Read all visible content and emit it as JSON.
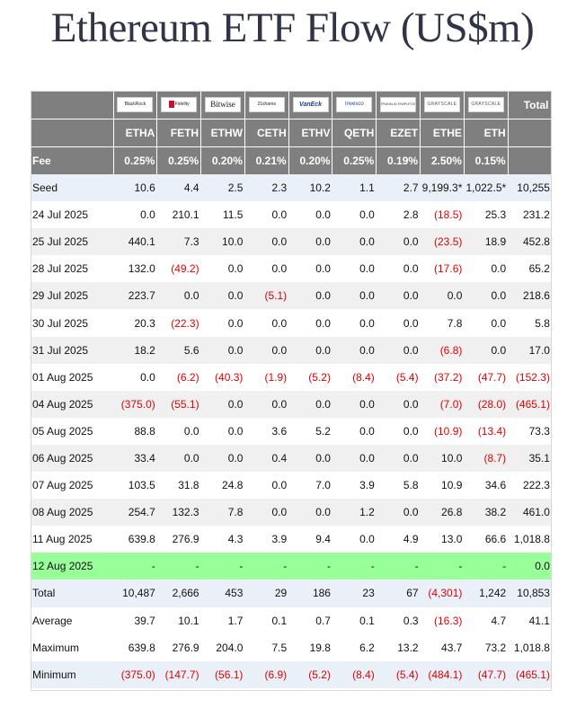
{
  "title": "Ethereum ETF Flow (US$m)",
  "issuers": [
    {
      "name": "BlackRock",
      "logo": "blackrock-logo"
    },
    {
      "name": "Fidelity",
      "logo": "fidelity-logo"
    },
    {
      "name": "Bitwise",
      "logo": "bitwise-logo"
    },
    {
      "name": "21shares",
      "logo": "21shares-logo"
    },
    {
      "name": "VanEck",
      "logo": "vaneck-logo"
    },
    {
      "name": "Invesco",
      "logo": "invesco-logo"
    },
    {
      "name": "FRANKLIN TEMPLETON",
      "logo": "franklin-templeton-logo"
    },
    {
      "name": "GRAYSCALE",
      "logo": "grayscale-logo"
    },
    {
      "name": "GRAYSCALE",
      "logo": "grayscale-logo"
    }
  ],
  "total_header": "Total",
  "tickers": [
    "ETHA",
    "FETH",
    "ETHW",
    "CETH",
    "ETHV",
    "QETH",
    "EZET",
    "ETHE",
    "ETH"
  ],
  "fee": {
    "label": "Fee",
    "values": [
      "0.25%",
      "0.25%",
      "0.20%",
      "0.21%",
      "0.20%",
      "0.25%",
      "0.19%",
      "2.50%",
      "0.15%"
    ]
  },
  "rows": [
    {
      "date": "Seed",
      "values": [
        "10.6",
        "4.4",
        "2.5",
        "2.3",
        "10.2",
        "1.1",
        "2.7",
        "9,199.3*",
        "1,022.5*"
      ],
      "total": "10,255",
      "style": "seed"
    },
    {
      "date": "24 Jul 2025",
      "values": [
        "0.0",
        "210.1",
        "11.5",
        "0.0",
        "0.0",
        "0.0",
        "2.8",
        "(18.5)",
        "25.3"
      ],
      "total": "231.2",
      "style": "plain"
    },
    {
      "date": "25 Jul 2025",
      "values": [
        "440.1",
        "7.3",
        "10.0",
        "0.0",
        "0.0",
        "0.0",
        "0.0",
        "(23.5)",
        "18.9"
      ],
      "total": "452.8",
      "style": "alt"
    },
    {
      "date": "28 Jul 2025",
      "values": [
        "132.0",
        "(49.2)",
        "0.0",
        "0.0",
        "0.0",
        "0.0",
        "0.0",
        "(17.6)",
        "0.0"
      ],
      "total": "65.2",
      "style": "plain"
    },
    {
      "date": "29 Jul 2025",
      "values": [
        "223.7",
        "0.0",
        "0.0",
        "(5.1)",
        "0.0",
        "0.0",
        "0.0",
        "0.0",
        "0.0"
      ],
      "total": "218.6",
      "style": "alt"
    },
    {
      "date": "30 Jul 2025",
      "values": [
        "20.3",
        "(22.3)",
        "0.0",
        "0.0",
        "0.0",
        "0.0",
        "0.0",
        "7.8",
        "0.0"
      ],
      "total": "5.8",
      "style": "plain"
    },
    {
      "date": "31 Jul 2025",
      "values": [
        "18.2",
        "5.6",
        "0.0",
        "0.0",
        "0.0",
        "0.0",
        "0.0",
        "(6.8)",
        "0.0"
      ],
      "total": "17.0",
      "style": "alt"
    },
    {
      "date": "01 Aug 2025",
      "values": [
        "0.0",
        "(6.2)",
        "(40.3)",
        "(1.9)",
        "(5.2)",
        "(8.4)",
        "(5.4)",
        "(37.2)",
        "(47.7)"
      ],
      "total": "(152.3)",
      "style": "plain"
    },
    {
      "date": "04 Aug 2025",
      "values": [
        "(375.0)",
        "(55.1)",
        "0.0",
        "0.0",
        "0.0",
        "0.0",
        "0.0",
        "(7.0)",
        "(28.0)"
      ],
      "total": "(465.1)",
      "style": "alt"
    },
    {
      "date": "05 Aug 2025",
      "values": [
        "88.8",
        "0.0",
        "0.0",
        "3.6",
        "5.2",
        "0.0",
        "0.0",
        "(10.9)",
        "(13.4)"
      ],
      "total": "73.3",
      "style": "plain"
    },
    {
      "date": "06 Aug 2025",
      "values": [
        "33.4",
        "0.0",
        "0.0",
        "0.4",
        "0.0",
        "0.0",
        "0.0",
        "10.0",
        "(8.7)"
      ],
      "total": "35.1",
      "style": "alt"
    },
    {
      "date": "07 Aug 2025",
      "values": [
        "103.5",
        "31.8",
        "24.8",
        "0.0",
        "7.0",
        "3.9",
        "5.8",
        "10.9",
        "34.6"
      ],
      "total": "222.3",
      "style": "plain"
    },
    {
      "date": "08 Aug 2025",
      "values": [
        "254.7",
        "132.3",
        "7.8",
        "0.0",
        "0.0",
        "1.2",
        "0.0",
        "26.8",
        "38.2"
      ],
      "total": "461.0",
      "style": "alt"
    },
    {
      "date": "11 Aug 2025",
      "values": [
        "639.8",
        "276.9",
        "4.3",
        "3.9",
        "9.4",
        "0.0",
        "4.9",
        "13.0",
        "66.6"
      ],
      "total": "1,018.8",
      "style": "plain"
    },
    {
      "date": "12 Aug 2025",
      "values": [
        "-",
        "-",
        "-",
        "-",
        "-",
        "-",
        "-",
        "-",
        "-"
      ],
      "total": "0.0",
      "style": "hl"
    }
  ],
  "summary": [
    {
      "label": "Total",
      "values": [
        "10,487",
        "2,666",
        "453",
        "29",
        "186",
        "23",
        "67",
        "(4,301)",
        "1,242"
      ],
      "total": "10,853",
      "style": "shade"
    },
    {
      "label": "Average",
      "values": [
        "39.7",
        "10.1",
        "1.7",
        "0.1",
        "0.7",
        "0.1",
        "0.3",
        "(16.3)",
        "4.7"
      ],
      "total": "41.1",
      "style": "plain"
    },
    {
      "label": "Maximum",
      "values": [
        "639.8",
        "276.9",
        "204.0",
        "7.5",
        "19.8",
        "6.2",
        "13.2",
        "43.7",
        "73.2"
      ],
      "total": "1,018.8",
      "style": "plain"
    },
    {
      "label": "Minimum",
      "values": [
        "(375.0)",
        "(147.7)",
        "(56.1)",
        "(6.9)",
        "(5.2)",
        "(8.4)",
        "(5.4)",
        "(484.1)",
        "(47.7)"
      ],
      "total": "(465.1)",
      "style": "shade"
    }
  ],
  "colors": {
    "header_bg": "#7f7f7f",
    "negative": "#e00000",
    "highlight": "#99ff99",
    "shade": "#eaf0f8"
  }
}
